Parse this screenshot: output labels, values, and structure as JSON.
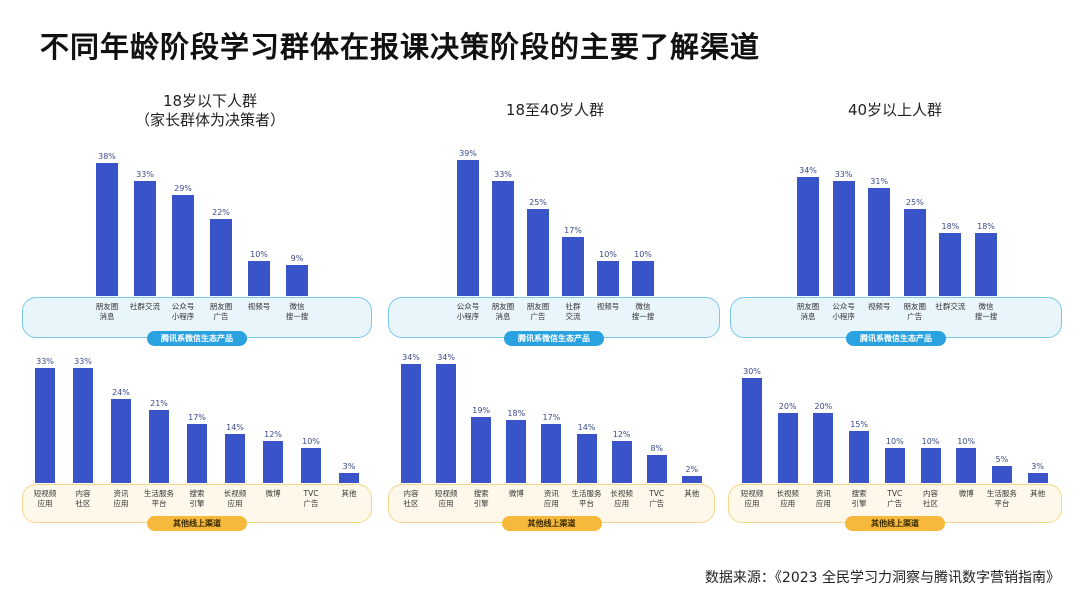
{
  "title": "不同年龄阶段学习群体在报课决策阶段的主要了解渠道",
  "source": "数据来源：《2023 全民学习力洞察与腾讯数字营销指南》",
  "colors": {
    "bar": "#3954c8",
    "top_group_box": "#e8f5fb",
    "top_group_pill": "#2ba2e0",
    "bottom_group_box": "#fdf8ea",
    "bottom_group_pill": "#f6b93b"
  },
  "chart_data": [
    {
      "type": "bar",
      "group": "18岁以下人群\n（家长群体为决策者）",
      "category_group": "腾讯系微信生态产品",
      "categories": [
        "朋友圈\n消息",
        "社群交流",
        "公众号\n小程序",
        "朋友圈\n广告",
        "视频号",
        "微信\n搜一搜"
      ],
      "values": [
        38,
        33,
        29,
        22,
        10,
        9
      ],
      "labels": [
        "38%",
        "33%",
        "29%",
        "22%",
        "10%",
        "9%"
      ]
    },
    {
      "type": "bar",
      "group": "18至40岁人群",
      "category_group": "腾讯系微信生态产品",
      "categories": [
        "公众号\n小程序",
        "朋友圈\n消息",
        "朋友圈\n广告",
        "社群\n交流",
        "视频号",
        "微信\n搜一搜"
      ],
      "values": [
        39,
        33,
        25,
        17,
        10,
        10
      ],
      "labels": [
        "39%",
        "33%",
        "25%",
        "17%",
        "10%",
        "10%"
      ]
    },
    {
      "type": "bar",
      "group": "40岁以上人群",
      "category_group": "腾讯系微信生态产品",
      "categories": [
        "朋友圈\n消息",
        "公众号\n小程序",
        "视频号",
        "朋友圈\n广告",
        "社群交流",
        "微信\n搜一搜"
      ],
      "values": [
        34,
        33,
        31,
        25,
        18,
        18
      ],
      "labels": [
        "34%",
        "33%",
        "31%",
        "25%",
        "18%",
        "18%"
      ]
    },
    {
      "type": "bar",
      "group": "18岁以下人群",
      "category_group": "其他线上渠道",
      "categories": [
        "短视频\n应用",
        "内容\n社区",
        "资讯\n应用",
        "生活服务\n平台",
        "搜索\n引擎",
        "长视频\n应用",
        "微博",
        "TVC\n广告",
        "其他"
      ],
      "values": [
        33,
        33,
        24,
        21,
        17,
        14,
        12,
        10,
        3
      ],
      "labels": [
        "33%",
        "33%",
        "24%",
        "21%",
        "17%",
        "14%",
        "12%",
        "10%",
        "3%"
      ]
    },
    {
      "type": "bar",
      "group": "18至40岁人群",
      "category_group": "其他线上渠道",
      "categories": [
        "内容\n社区",
        "短视频\n应用",
        "搜索\n引擎",
        "微博",
        "资讯\n应用",
        "生活服务\n平台",
        "长视频\n应用",
        "TVC\n广告",
        "其他"
      ],
      "values": [
        34,
        34,
        19,
        18,
        17,
        14,
        12,
        8,
        2
      ],
      "labels": [
        "34%",
        "34%",
        "19%",
        "18%",
        "17%",
        "14%",
        "12%",
        "8%",
        "2%"
      ]
    },
    {
      "type": "bar",
      "group": "40岁以上人群",
      "category_group": "其他线上渠道",
      "categories": [
        "短视频\n应用",
        "长视频\n应用",
        "资讯\n应用",
        "搜索\n引擎",
        "TVC\n广告",
        "内容\n社区",
        "微博",
        "生活服务\n平台",
        "其他"
      ],
      "values": [
        30,
        20,
        20,
        15,
        10,
        10,
        10,
        5,
        3
      ],
      "labels": [
        "30%",
        "20%",
        "20%",
        "15%",
        "10%",
        "10%",
        "10%",
        "5%",
        "3%"
      ]
    }
  ]
}
